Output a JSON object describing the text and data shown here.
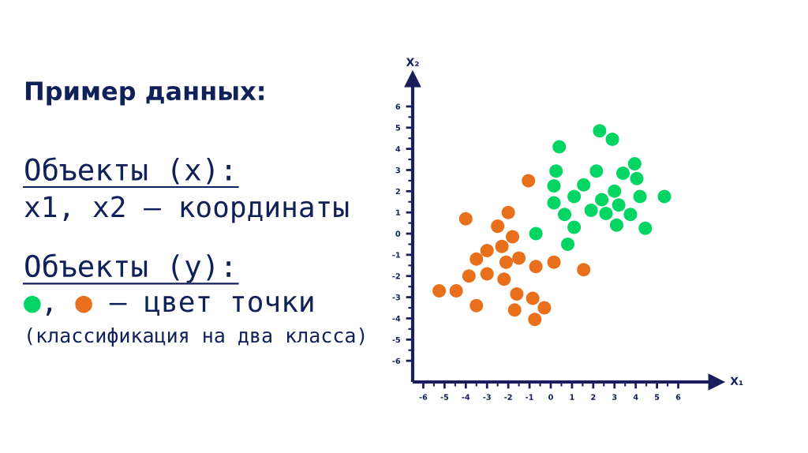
{
  "chart_data": {
    "type": "scatter",
    "title": "Пример данных:",
    "xlabel": "X₁",
    "ylabel": "X₂",
    "annotations": [
      "Объекты (x):",
      "x1, x2 — координаты",
      "Объекты (y):",
      "●, ● — цвет точки",
      "(классификация на два класса)"
    ],
    "series": [
      {
        "color": "#02d563",
        "x": [
          0.4,
          2.3,
          2.9,
          0.25,
          2.15,
          3.95,
          3.4,
          4.05,
          0.15,
          1.55,
          1.1,
          3.0,
          2.4,
          4.2,
          5.35,
          0.15,
          3.2,
          1.9,
          2.6,
          0.65,
          3.75,
          1.1,
          3.1,
          4.45,
          -0.7,
          0.8
        ],
        "values": [
          4.1,
          4.85,
          4.45,
          2.95,
          2.95,
          3.3,
          2.85,
          2.6,
          2.25,
          2.3,
          1.75,
          2.0,
          1.6,
          1.75,
          1.75,
          1.45,
          1.35,
          1.1,
          0.95,
          0.9,
          0.9,
          0.3,
          0.4,
          0.25,
          0.0,
          -0.5
        ]
      },
      {
        "color": "#e8701c",
        "x": [
          -4.0,
          -2.0,
          -2.5,
          -1.8,
          -2.3,
          -3.0,
          -3.5,
          -2.1,
          -1.5,
          -0.7,
          0.15,
          1.55,
          -3.85,
          -3.0,
          -2.2,
          -5.25,
          -4.45,
          -3.5,
          -1.6,
          -0.85,
          -1.7,
          -0.3,
          -0.75,
          -1.05
        ],
        "values": [
          0.7,
          1.0,
          0.35,
          -0.15,
          -0.6,
          -0.8,
          -1.2,
          -1.35,
          -1.15,
          -1.55,
          -1.35,
          -1.7,
          -2.0,
          -1.9,
          -2.15,
          -2.7,
          -2.7,
          -3.4,
          -2.85,
          -3.05,
          -3.6,
          -3.5,
          -4.05,
          2.5
        ]
      }
    ],
    "xlim": [
      -6.5,
      7.8
    ],
    "ylim": [
      -7,
      7.3
    ],
    "xticks": [
      -6,
      -5,
      -4,
      -3,
      -2,
      -1,
      0,
      1,
      2,
      3,
      4,
      5,
      6
    ],
    "yticks": [
      -6,
      -5,
      -4,
      -3,
      -2,
      -1,
      0,
      1,
      2,
      3,
      4,
      5,
      6
    ],
    "marker": "circle"
  }
}
